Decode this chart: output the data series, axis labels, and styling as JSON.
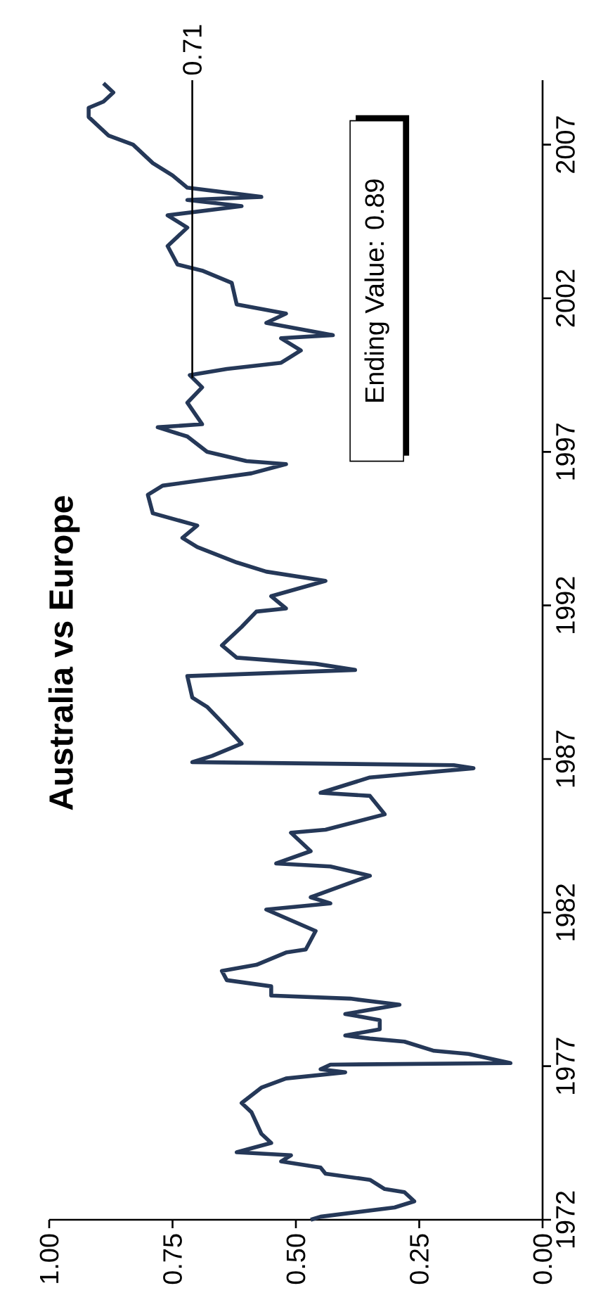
{
  "chart_data": {
    "type": "line",
    "title": "Australia vs Europe",
    "xlim": [
      1,
      0
    ],
    "ylim": [
      1972,
      2009.1
    ],
    "xticks": [
      {
        "value": 1,
        "label": "1.00"
      },
      {
        "value": 0.75,
        "label": "0.75"
      },
      {
        "value": 0.5,
        "label": "0.50"
      },
      {
        "value": 0.25,
        "label": "0.25"
      },
      {
        "value": 0,
        "label": "0.00"
      }
    ],
    "yticks": [
      1972,
      1977,
      1982,
      1987,
      1992,
      1997,
      2002,
      2007
    ],
    "series": [
      {
        "color": "#253858",
        "x": [
          0.47,
          0.45,
          0.3,
          0.26,
          0.28,
          0.32,
          0.35,
          0.44,
          0.45,
          0.53,
          0.51,
          0.62,
          0.55,
          0.57,
          0.59,
          0.61,
          0.57,
          0.52,
          0.4,
          0.45,
          0.43,
          0.065,
          0.15,
          0.22,
          0.28,
          0.35,
          0.4,
          0.33,
          0.33,
          0.4,
          0.29,
          0.39,
          0.55,
          0.55,
          0.64,
          0.65,
          0.58,
          0.52,
          0.48,
          0.46,
          0.56,
          0.43,
          0.47,
          0.35,
          0.43,
          0.54,
          0.47,
          0.51,
          0.44,
          0.32,
          0.35,
          0.45,
          0.35,
          0.14,
          0.18,
          0.71,
          0.67,
          0.61,
          0.65,
          0.68,
          0.71,
          0.72,
          0.38,
          0.46,
          0.62,
          0.65,
          0.61,
          0.58,
          0.52,
          0.55,
          0.44,
          0.56,
          0.62,
          0.7,
          0.73,
          0.7,
          0.79,
          0.8,
          0.77,
          0.59,
          0.52,
          0.6,
          0.68,
          0.72,
          0.78,
          0.69,
          0.72,
          0.69,
          0.715,
          0.64,
          0.53,
          0.49,
          0.53,
          0.425,
          0.56,
          0.52,
          0.62,
          0.63,
          0.69,
          0.74,
          0.76,
          0.72,
          0.76,
          0.61,
          0.72,
          0.57,
          0.72,
          0.75,
          0.79,
          0.81,
          0.83,
          0.88,
          0.92,
          0.92,
          0.89,
          0.87,
          0.89
        ],
        "values": [
          1972.0,
          1972.1,
          1972.4,
          1972.6,
          1972.9,
          1973.0,
          1973.3,
          1973.5,
          1973.7,
          1973.9,
          1974.1,
          1974.2,
          1974.5,
          1974.8,
          1975.5,
          1975.8,
          1976.3,
          1976.6,
          1976.8,
          1976.9,
          1977.05,
          1977.1,
          1977.4,
          1977.5,
          1977.8,
          1977.9,
          1978.0,
          1978.2,
          1978.5,
          1978.7,
          1979.0,
          1979.2,
          1979.3,
          1979.6,
          1979.8,
          1980.1,
          1980.3,
          1980.7,
          1980.8,
          1981.4,
          1982.1,
          1982.3,
          1982.5,
          1983.2,
          1983.5,
          1983.6,
          1984.0,
          1984.6,
          1984.7,
          1985.2,
          1985.8,
          1985.9,
          1986.4,
          1986.7,
          1986.8,
          1986.9,
          1987.1,
          1987.5,
          1988.2,
          1988.7,
          1989.0,
          1989.7,
          1989.9,
          1990.1,
          1990.3,
          1990.7,
          1991.3,
          1991.8,
          1991.9,
          1992.3,
          1992.8,
          1993.1,
          1993.4,
          1993.9,
          1994.2,
          1994.6,
          1995.0,
          1995.6,
          1995.9,
          1996.3,
          1996.6,
          1996.7,
          1997.0,
          1997.5,
          1997.8,
          1997.9,
          1998.6,
          1999.1,
          1999.5,
          1999.7,
          1999.9,
          2000.3,
          2000.7,
          2000.8,
          2001.2,
          2001.5,
          2001.8,
          2002.5,
          2002.9,
          2003.1,
          2003.7,
          2004.3,
          2004.7,
          2005.0,
          2005.2,
          2005.3,
          2005.6,
          2006.0,
          2006.4,
          2006.7,
          2007.0,
          2007.3,
          2007.9,
          2008.2,
          2008.4,
          2008.7,
          2009.0
        ]
      },
      {
        "type": "line",
        "color": "#000000",
        "x": [
          0.71,
          0.71
        ],
        "values": [
          1999.4,
          2009.1
        ]
      }
    ],
    "annotations": [
      {
        "text": "0.71",
        "x": 0.71,
        "y": 2009.1
      },
      "Ending Value: 0.89"
    ]
  }
}
